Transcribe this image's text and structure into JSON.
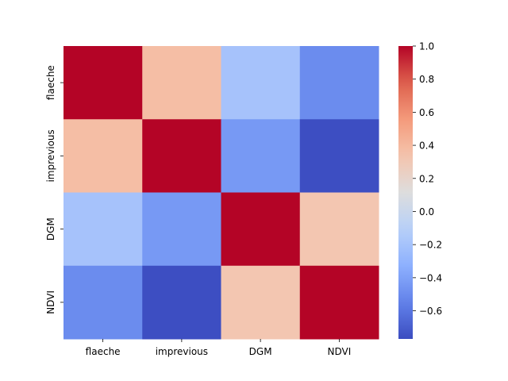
{
  "chart_data": {
    "type": "heatmap",
    "title": "",
    "xlabel": "",
    "ylabel": "",
    "x_categories": [
      "flaeche",
      "imprevious",
      "DGM",
      "NDVI"
    ],
    "y_categories": [
      "flaeche",
      "imprevious",
      "DGM",
      "NDVI"
    ],
    "values": [
      [
        1.0,
        0.37,
        -0.2,
        -0.5
      ],
      [
        0.37,
        1.0,
        -0.44,
        -0.76
      ],
      [
        -0.2,
        -0.44,
        1.0,
        0.32
      ],
      [
        -0.5,
        -0.76,
        0.32,
        1.0
      ]
    ],
    "colormap": "coolwarm",
    "colorbar": {
      "min": -0.77,
      "max": 1.0,
      "ticks": [
        1.0,
        0.8,
        0.6,
        0.4,
        0.2,
        0.0,
        -0.2,
        -0.4,
        -0.6
      ],
      "tick_labels": [
        "1.0",
        "0.8",
        "0.6",
        "0.4",
        "0.2",
        "0.0",
        "−0.2",
        "−0.4",
        "−0.6"
      ]
    },
    "grid": false,
    "legend": "colorbar-right"
  }
}
